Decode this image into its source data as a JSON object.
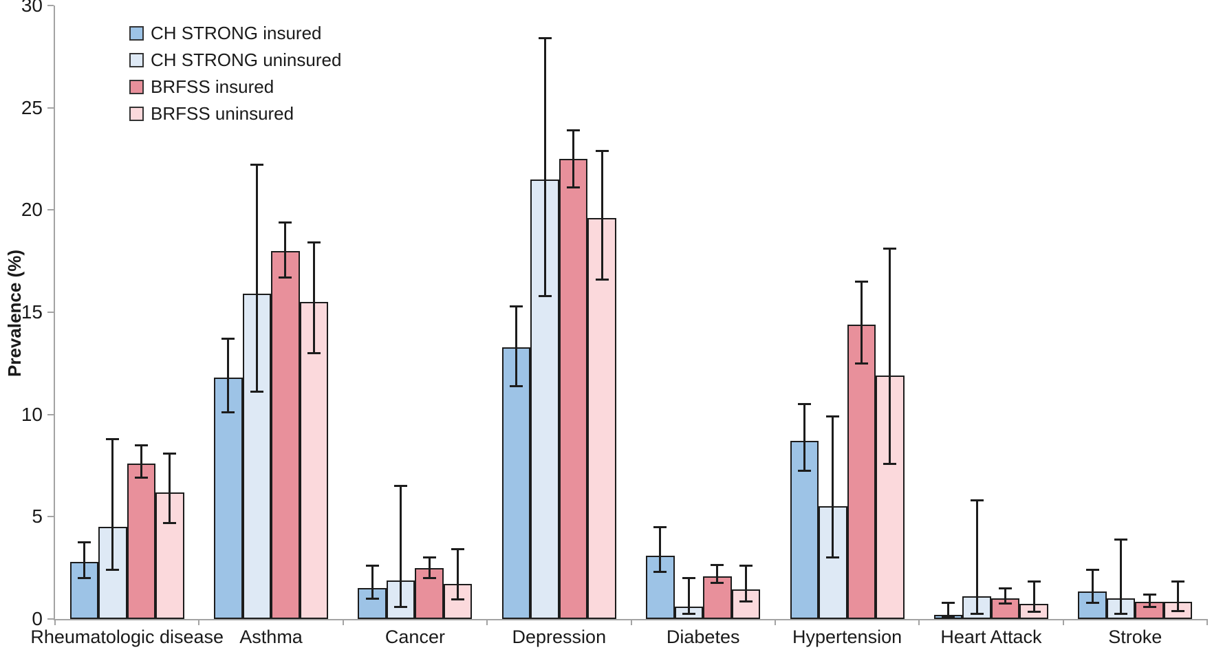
{
  "chart_data": {
    "type": "bar",
    "title": "",
    "xlabel": "",
    "ylabel": "Prevalence (%)",
    "ylim": [
      0,
      30
    ],
    "ytick_step": 5,
    "grid": false,
    "legend_position": "top-left-inside",
    "error_bars": "confidence-interval whiskers",
    "axis_color": "#a3a3a3",
    "outline_color": "#1c1c1c",
    "text_color": "#1a1a1a",
    "categories": [
      "Rheumatologic disease",
      "Asthma",
      "Cancer",
      "Depression",
      "Diabetes",
      "Hypertension",
      "Heart Attack",
      "Stroke"
    ],
    "series": [
      {
        "name": "CH STRONG insured",
        "color": "#9DC3E6",
        "values": [
          2.8,
          11.8,
          1.5,
          13.3,
          3.1,
          8.7,
          0.2,
          1.35
        ],
        "ci_low": [
          2.0,
          10.1,
          1.0,
          11.4,
          2.3,
          7.25,
          0.1,
          0.8
        ],
        "ci_high": [
          3.75,
          13.7,
          2.6,
          15.3,
          4.5,
          10.5,
          0.8,
          2.4
        ]
      },
      {
        "name": "CH STRONG uninsured",
        "color": "#DEE9F5",
        "values": [
          4.5,
          15.9,
          1.9,
          21.5,
          0.6,
          5.5,
          1.1,
          1.0
        ],
        "ci_low": [
          2.4,
          11.1,
          0.6,
          15.8,
          0.25,
          3.0,
          0.25,
          0.25
        ],
        "ci_high": [
          8.8,
          22.2,
          6.5,
          28.4,
          2.0,
          9.9,
          5.8,
          3.9
        ]
      },
      {
        "name": "BRFSS insured",
        "color": "#E8909B",
        "values": [
          7.6,
          18.0,
          2.5,
          22.5,
          2.1,
          14.4,
          1.0,
          0.85
        ],
        "ci_low": [
          6.9,
          16.7,
          2.0,
          21.1,
          1.75,
          12.5,
          0.75,
          0.6
        ],
        "ci_high": [
          8.5,
          19.4,
          3.0,
          23.9,
          2.65,
          16.5,
          1.5,
          1.2
        ]
      },
      {
        "name": "BRFSS uninsured",
        "color": "#FBD9DC",
        "values": [
          6.2,
          15.5,
          1.7,
          19.6,
          1.45,
          11.9,
          0.75,
          0.85
        ],
        "ci_low": [
          4.7,
          13.0,
          0.95,
          16.6,
          0.85,
          7.6,
          0.35,
          0.4
        ],
        "ci_high": [
          8.1,
          18.4,
          3.4,
          22.9,
          2.6,
          18.1,
          1.85,
          1.85
        ]
      }
    ]
  }
}
